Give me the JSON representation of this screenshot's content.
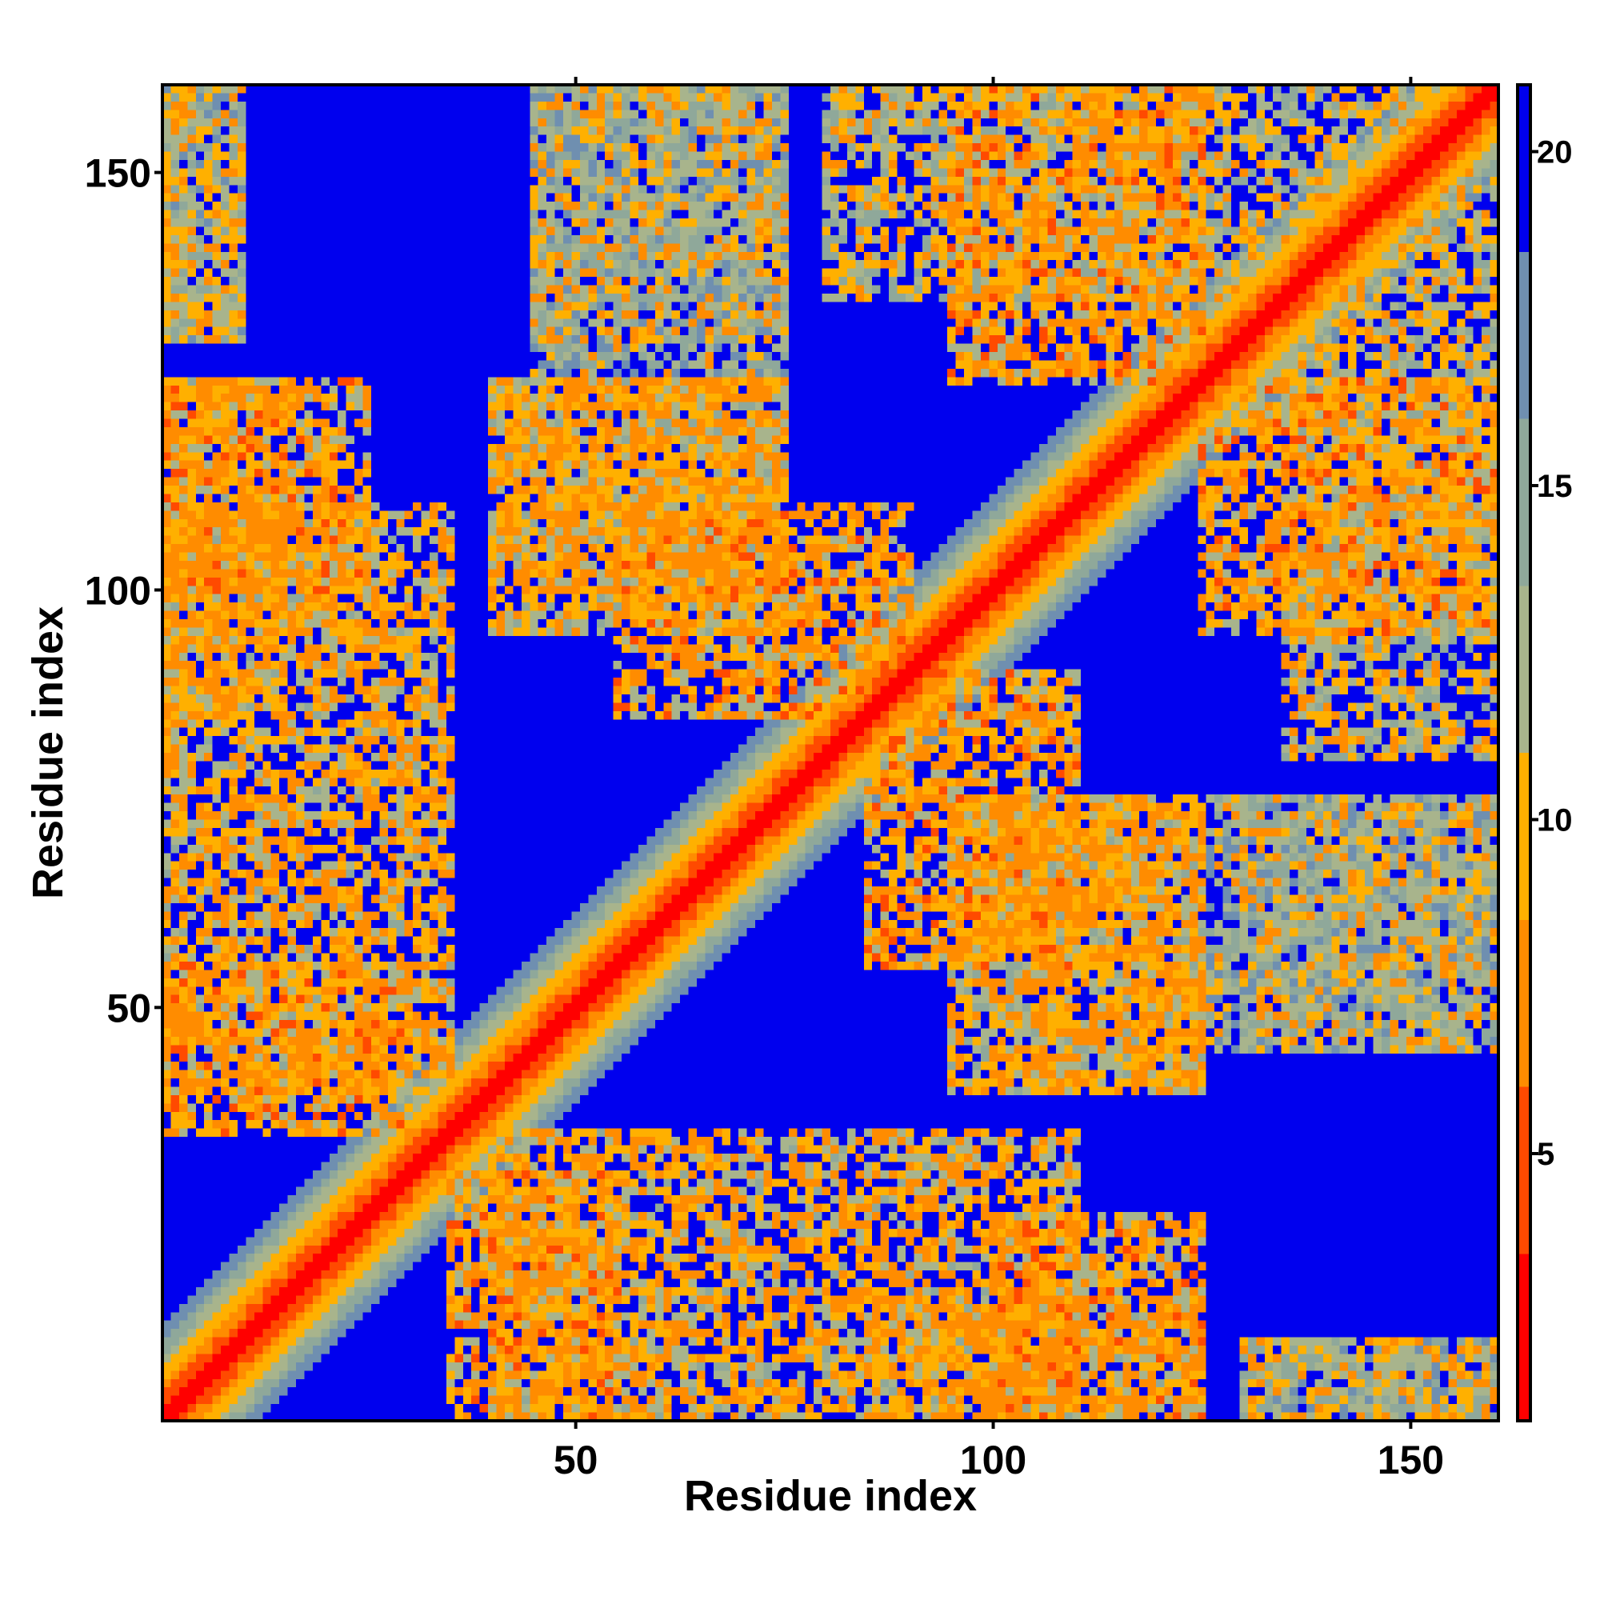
{
  "chart_data": {
    "type": "heatmap",
    "title": "",
    "xlabel": "Residue index",
    "ylabel": "Residue index",
    "n_residues": 160,
    "xlim": [
      1,
      160
    ],
    "ylim": [
      1,
      160
    ],
    "x_ticks": [
      50,
      100,
      150
    ],
    "x_tick_labels": [
      "50",
      "100",
      "150"
    ],
    "y_ticks": [
      50,
      100,
      150
    ],
    "y_tick_labels": [
      "50",
      "100",
      "150"
    ],
    "colorbar": {
      "range": [
        1,
        21
      ],
      "ticks": [
        5,
        10,
        15,
        20
      ],
      "tick_labels": [
        "5",
        "10",
        "15",
        "20"
      ],
      "colors": [
        "#ff0000",
        "#ff4a00",
        "#ff8c00",
        "#ffb000",
        "#a8b48c",
        "#8fa89a",
        "#6f8fb0",
        "#0000ee"
      ]
    },
    "grid": false,
    "description_of_values": "Pairwise residue distance map; symmetric with near-zero values on the main diagonal and saturated maximum (blue) for distant pairs.",
    "contact_regions": [
      {
        "x": [
          1,
          10
        ],
        "y": [
          130,
          160
        ],
        "value": 13
      },
      {
        "x": [
          1,
          15
        ],
        "y": [
          85,
          125
        ],
        "value": 10
      },
      {
        "x": [
          1,
          30
        ],
        "y": [
          35,
          55
        ],
        "value": 9
      },
      {
        "x": [
          40,
          75
        ],
        "y": [
          95,
          125
        ],
        "value": 11
      },
      {
        "x": [
          45,
          75
        ],
        "y": [
          130,
          160
        ],
        "value": 14
      },
      {
        "x": [
          80,
          160
        ],
        "y": [
          135,
          160
        ],
        "value": 12
      },
      {
        "x": [
          125,
          160
        ],
        "y": [
          95,
          125
        ],
        "value": 9
      },
      {
        "x": [
          85,
          110
        ],
        "y": [
          55,
          90
        ],
        "value": 9
      },
      {
        "x": [
          100,
          125
        ],
        "y": [
          40,
          75
        ],
        "value": 10
      },
      {
        "x": [
          125,
          160
        ],
        "y": [
          45,
          75
        ],
        "value": 14
      },
      {
        "x": [
          40,
          110
        ],
        "y": [
          1,
          35
        ],
        "value": 10
      },
      {
        "x": [
          100,
          125
        ],
        "y": [
          1,
          25
        ],
        "value": 9
      },
      {
        "x": [
          130,
          160
        ],
        "y": [
          1,
          10
        ],
        "value": 14
      }
    ]
  },
  "colors": {
    "background_blue": "#0000ee",
    "diagonal_red": "#ff0000",
    "near_orange": "#ff8c00",
    "mid_green": "#a8b48c"
  }
}
